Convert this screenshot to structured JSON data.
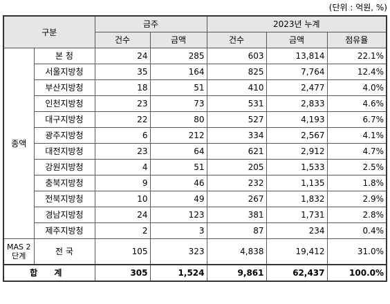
{
  "unit_note": "(단위 : 억원, %)",
  "header": {
    "gubun": "구분",
    "month_group": "금주",
    "cum_group": "2023년 누계",
    "count": "건수",
    "amount": "금액",
    "share": "점유율"
  },
  "side_labels": {
    "total_amount": "종액",
    "mas": "MAS 2단계"
  },
  "rows": [
    {
      "region": "본  청",
      "w_count": "24",
      "w_amount": "285",
      "c_count": "603",
      "c_amount": "13,814",
      "share": "22.1%"
    },
    {
      "region": "서울지방청",
      "w_count": "35",
      "w_amount": "164",
      "c_count": "825",
      "c_amount": "7,764",
      "share": "12.4%"
    },
    {
      "region": "부산지방청",
      "w_count": "18",
      "w_amount": "51",
      "c_count": "410",
      "c_amount": "2,477",
      "share": "4.0%"
    },
    {
      "region": "인천지방청",
      "w_count": "23",
      "w_amount": "73",
      "c_count": "531",
      "c_amount": "2,833",
      "share": "4.6%"
    },
    {
      "region": "대구지방청",
      "w_count": "22",
      "w_amount": "80",
      "c_count": "527",
      "c_amount": "4,193",
      "share": "6.7%"
    },
    {
      "region": "광주지방청",
      "w_count": "6",
      "w_amount": "212",
      "c_count": "334",
      "c_amount": "2,567",
      "share": "4.1%"
    },
    {
      "region": "대전지방청",
      "w_count": "23",
      "w_amount": "64",
      "c_count": "621",
      "c_amount": "2,912",
      "share": "4.7%"
    },
    {
      "region": "강원지방청",
      "w_count": "4",
      "w_amount": "51",
      "c_count": "205",
      "c_amount": "1,533",
      "share": "2.5%"
    },
    {
      "region": "충북지방청",
      "w_count": "9",
      "w_amount": "46",
      "c_count": "232",
      "c_amount": "1,135",
      "share": "1.8%"
    },
    {
      "region": "전북지방청",
      "w_count": "10",
      "w_amount": "49",
      "c_count": "267",
      "c_amount": "1,832",
      "share": "2.9%"
    },
    {
      "region": "경남지방청",
      "w_count": "24",
      "w_amount": "123",
      "c_count": "381",
      "c_amount": "1,731",
      "share": "2.8%"
    },
    {
      "region": "제주지방청",
      "w_count": "2",
      "w_amount": "3",
      "c_count": "87",
      "c_amount": "234",
      "share": "0.4%"
    }
  ],
  "mas_row": {
    "region": "전  국",
    "w_count": "105",
    "w_amount": "323",
    "c_count": "4,838",
    "c_amount": "19,412",
    "share": "31.0%"
  },
  "total_row": {
    "label": "합 계",
    "w_count": "305",
    "w_amount": "1,524",
    "c_count": "9,861",
    "c_amount": "62,437",
    "share": "100.0%"
  }
}
